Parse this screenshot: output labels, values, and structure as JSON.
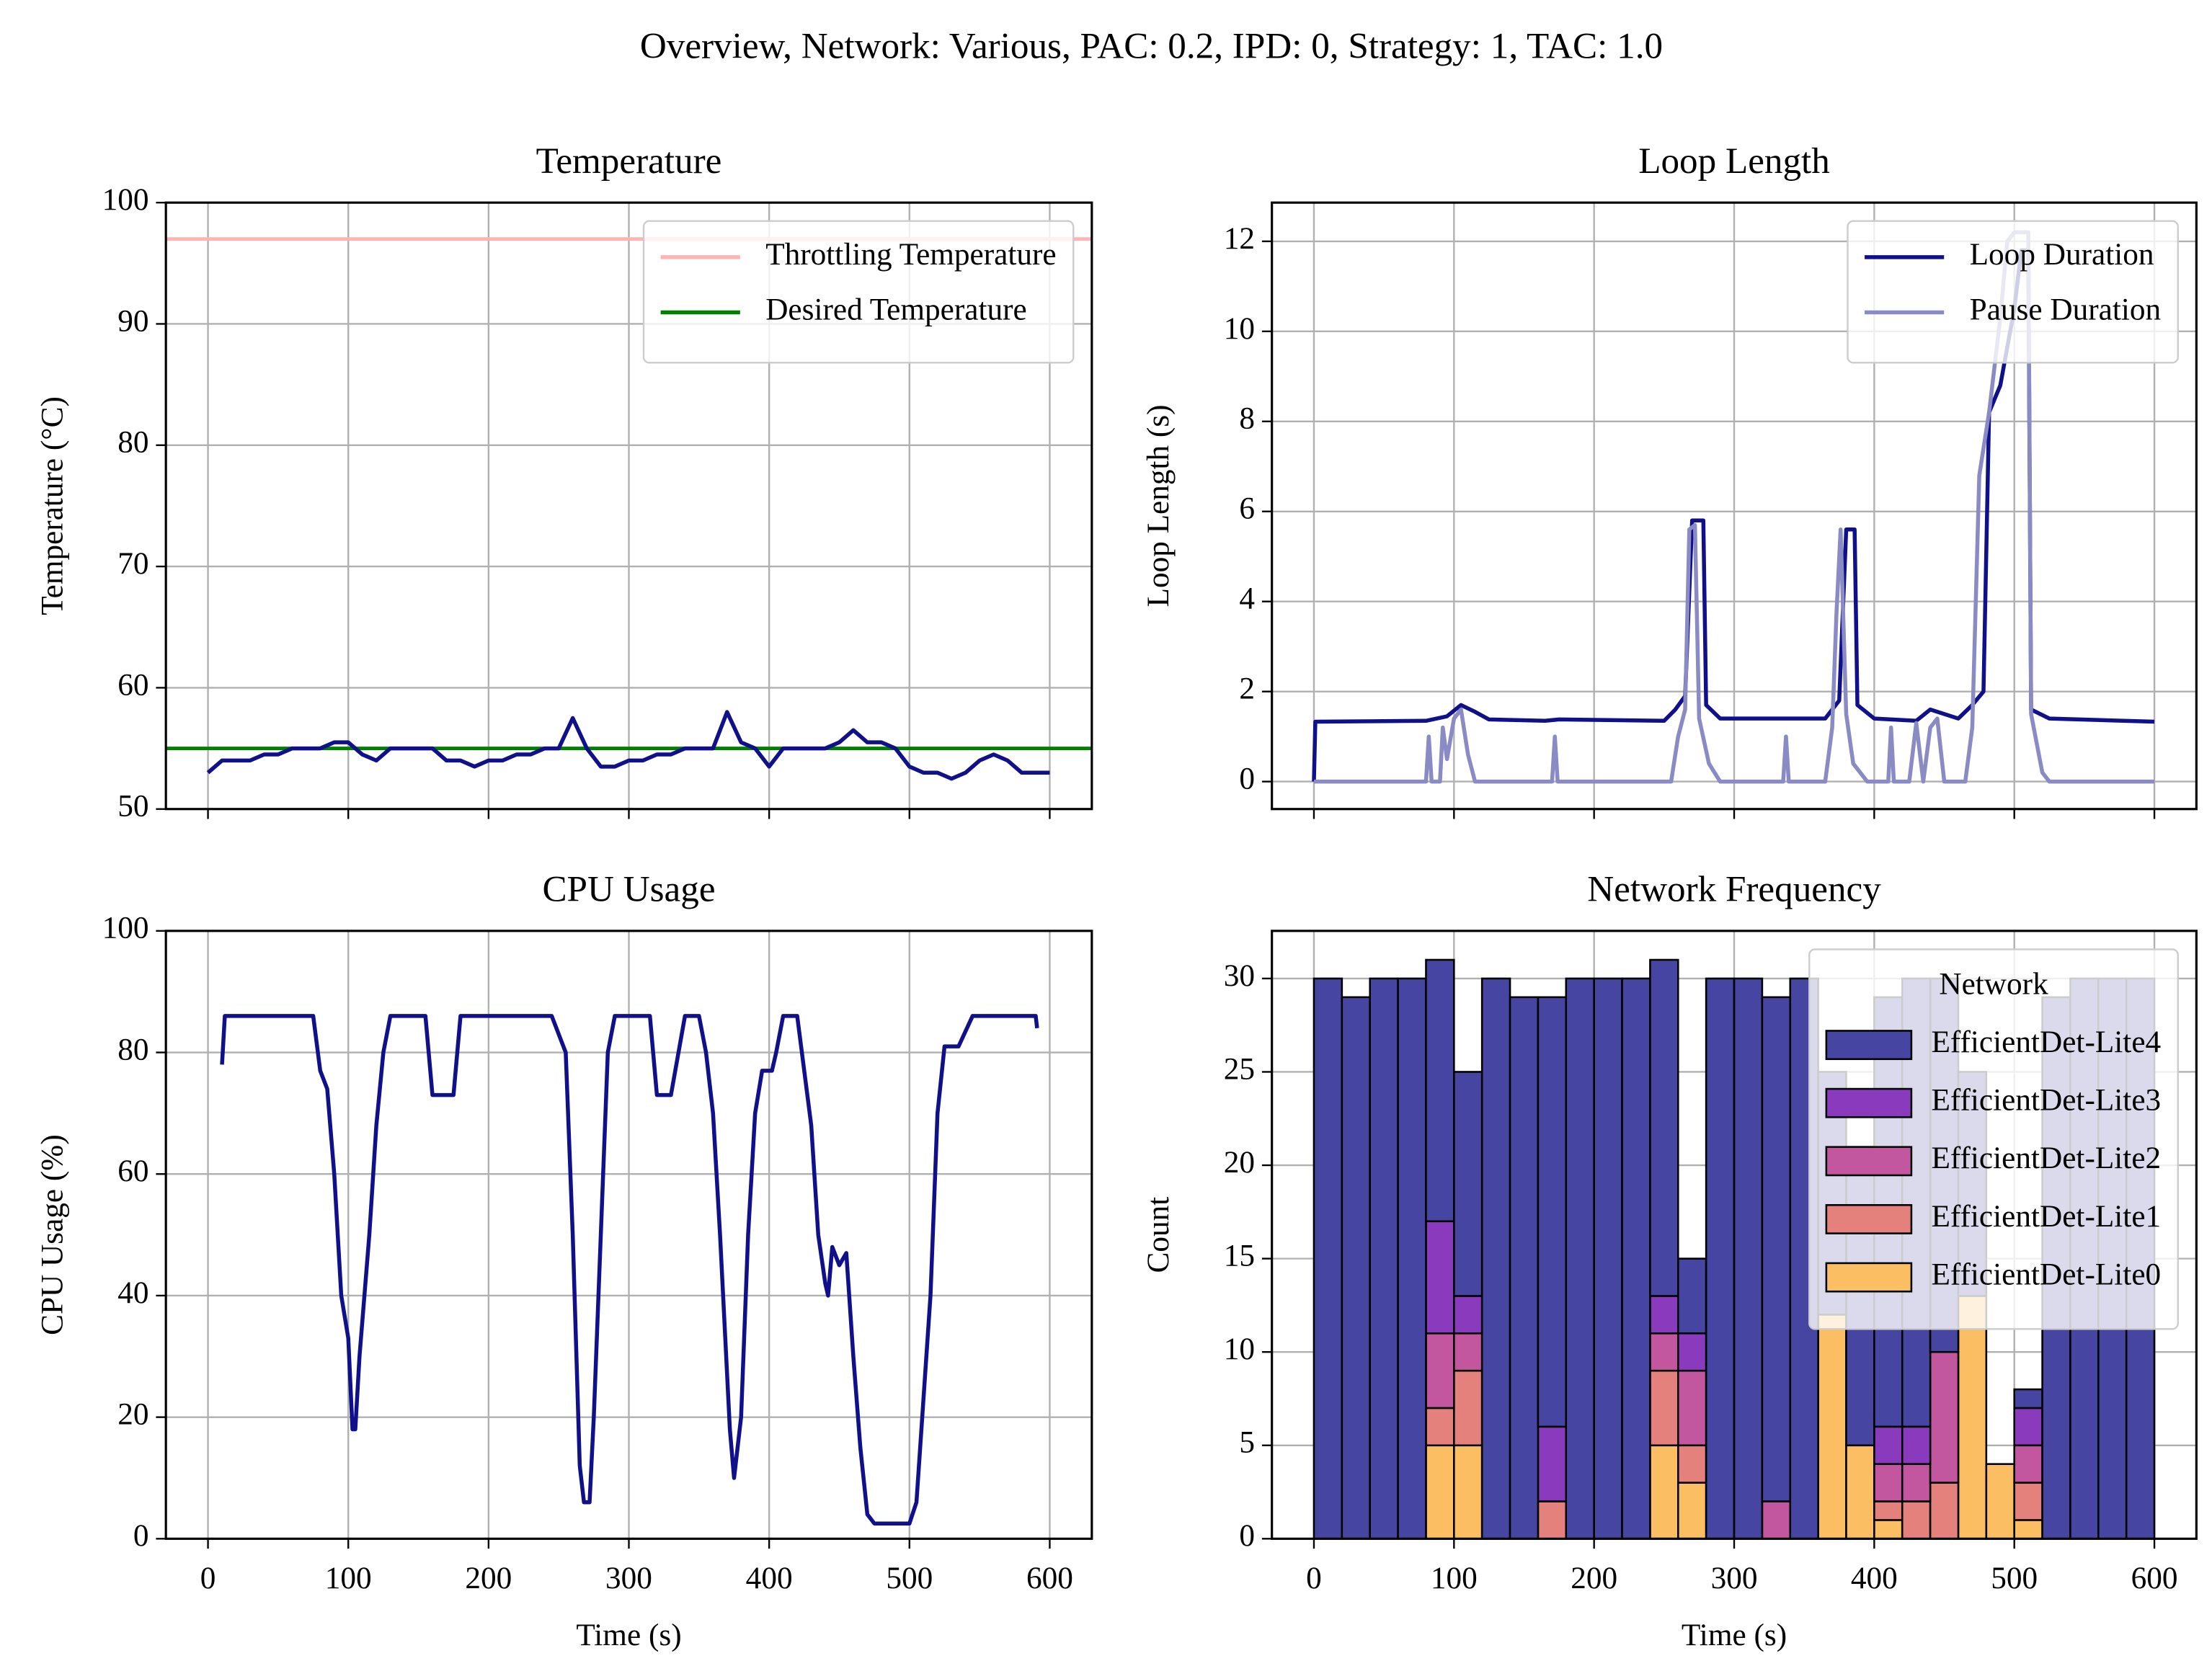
{
  "title": "Overview, Network: Various, PAC: 0.2, IPD: 0, Strategy: 1, TAC: 1.0",
  "chart_data": [
    {
      "type": "line",
      "title": "Temperature",
      "ylabel": "Temperature (°C)",
      "xlim": [
        -30,
        630
      ],
      "ylim": [
        50,
        100
      ],
      "xticks": [
        0,
        100,
        200,
        300,
        400,
        500,
        600
      ],
      "yticks": [
        50,
        60,
        70,
        80,
        90,
        100
      ],
      "xtick_labels": false,
      "grid": true,
      "legend": "upper right",
      "reference_lines": [
        {
          "name": "Throttling Temperature",
          "color": "#ffb3b3",
          "value": 97
        },
        {
          "name": "Desired Temperature",
          "color": "#008000",
          "value": 55
        }
      ],
      "series": [
        {
          "color": "#10108a",
          "x": [
            0,
            10,
            20,
            30,
            40,
            50,
            60,
            70,
            80,
            90,
            100,
            110,
            120,
            130,
            140,
            150,
            160,
            170,
            180,
            190,
            200,
            210,
            220,
            230,
            240,
            250,
            260,
            270,
            280,
            290,
            300,
            310,
            320,
            330,
            340,
            350,
            360,
            370,
            380,
            390,
            400,
            410,
            420,
            430,
            440,
            450,
            460,
            470,
            480,
            490,
            500,
            510,
            520,
            530,
            540,
            550,
            560,
            570,
            580,
            590,
            600
          ],
          "values": [
            53,
            54,
            54,
            54,
            54.5,
            54.5,
            55,
            55,
            55,
            55.5,
            55.5,
            54.5,
            54,
            55,
            55,
            55,
            55,
            54,
            54,
            53.5,
            54,
            54,
            54.5,
            54.5,
            55,
            55,
            57.5,
            55,
            53.5,
            53.5,
            54,
            54,
            54.5,
            54.5,
            55,
            55,
            55,
            58,
            55.5,
            55,
            53.5,
            55,
            55,
            55,
            55,
            55.5,
            56.5,
            55.5,
            55.5,
            55,
            53.5,
            53,
            53,
            52.5,
            53,
            54,
            54.5,
            54,
            53,
            53,
            53
          ]
        }
      ]
    },
    {
      "type": "line",
      "title": "Loop Length",
      "ylabel": "Loop Length (s)",
      "xlim": [
        -30,
        630
      ],
      "ylim": [
        -0.61,
        12.86
      ],
      "xticks": [
        0,
        100,
        200,
        300,
        400,
        500,
        600
      ],
      "yticks": [
        0,
        2,
        4,
        6,
        8,
        10,
        12
      ],
      "xtick_labels": false,
      "grid": true,
      "legend": "upper right",
      "series": [
        {
          "name": "Loop Duration",
          "color": "#10108a",
          "x": [
            0,
            1,
            80,
            95,
            105,
            115,
            125,
            165,
            175,
            250,
            258,
            265,
            270,
            278,
            280,
            290,
            365,
            375,
            380,
            386,
            388,
            400,
            430,
            440,
            450,
            460,
            470,
            478,
            482,
            490,
            500,
            505,
            510,
            512,
            525,
            600
          ],
          "values": [
            0,
            1.33,
            1.35,
            1.45,
            1.7,
            1.55,
            1.38,
            1.35,
            1.38,
            1.35,
            1.6,
            1.9,
            5.8,
            5.8,
            1.7,
            1.4,
            1.4,
            1.8,
            5.6,
            5.6,
            1.7,
            1.4,
            1.35,
            1.6,
            1.5,
            1.4,
            1.7,
            2,
            8.2,
            8.8,
            10.5,
            11.8,
            11.8,
            1.6,
            1.4,
            1.33
          ]
        },
        {
          "name": "Pause Duration",
          "color": "#8a8ac4",
          "x": [
            0,
            80,
            82,
            84,
            90,
            92,
            95,
            100,
            105,
            110,
            115,
            170,
            172,
            174,
            255,
            260,
            265,
            268,
            272,
            275,
            282,
            290,
            335,
            337,
            339,
            365,
            370,
            373,
            376,
            380,
            385,
            395,
            410,
            412,
            414,
            425,
            430,
            435,
            440,
            445,
            450,
            465,
            470,
            475,
            482,
            490,
            495,
            500,
            510,
            512,
            520,
            525,
            600
          ],
          "values": [
            0,
            0,
            1,
            0,
            0,
            1.2,
            0.5,
            1.4,
            1.6,
            0.6,
            0,
            0,
            1,
            0,
            0,
            1,
            1.6,
            5.6,
            5.7,
            1.4,
            0.4,
            0,
            0,
            1,
            0,
            0,
            1.2,
            3.7,
            5.6,
            1.5,
            0.4,
            0,
            0,
            1.2,
            0,
            0,
            1.3,
            0,
            1.2,
            1.4,
            0,
            0,
            1.2,
            6.8,
            8.2,
            10.3,
            12,
            12.2,
            12.2,
            1.5,
            0.2,
            0,
            0
          ]
        }
      ]
    },
    {
      "type": "line",
      "title": "CPU Usage",
      "ylabel": "CPU Usage (%)",
      "xlabel": "Time (s)",
      "xlim": [
        -30,
        630
      ],
      "ylim": [
        0,
        100
      ],
      "xticks": [
        0,
        100,
        200,
        300,
        400,
        500,
        600
      ],
      "yticks": [
        0,
        20,
        40,
        60,
        80,
        100
      ],
      "grid": true,
      "series": [
        {
          "color": "#10108a",
          "x": [
            10,
            12,
            75,
            80,
            85,
            90,
            95,
            100,
            103,
            105,
            108,
            115,
            120,
            125,
            130,
            155,
            160,
            175,
            180,
            245,
            255,
            260,
            265,
            268,
            272,
            275,
            280,
            285,
            290,
            315,
            320,
            330,
            340,
            350,
            355,
            360,
            365,
            372,
            375,
            380,
            385,
            390,
            395,
            402,
            405,
            410,
            420,
            425,
            430,
            435,
            440,
            442,
            445,
            450,
            455,
            460,
            465,
            470,
            475,
            500,
            505,
            515,
            520,
            525,
            535,
            545,
            590,
            591
          ],
          "values": [
            78,
            86,
            86,
            77,
            74,
            60,
            40,
            33,
            18,
            18,
            30,
            50,
            68,
            80,
            86,
            86,
            73,
            73,
            86,
            86,
            80,
            50,
            12,
            6,
            6,
            20,
            50,
            80,
            86,
            86,
            73,
            73,
            86,
            86,
            80,
            70,
            50,
            18,
            10,
            20,
            50,
            70,
            77,
            77,
            80,
            86,
            86,
            77,
            68,
            50,
            42,
            40,
            48,
            45,
            47,
            30,
            15,
            4,
            2.5,
            2.5,
            6,
            40,
            70,
            81,
            81,
            86,
            86,
            84
          ]
        }
      ]
    },
    {
      "type": "histogram",
      "title": "Network Frequency",
      "ylabel": "Count",
      "xlabel": "Time (s)",
      "xlim": [
        -30,
        630
      ],
      "ylim": [
        0,
        32.55
      ],
      "xticks": [
        0,
        100,
        200,
        300,
        400,
        500,
        600
      ],
      "yticks": [
        0,
        5,
        10,
        15,
        20,
        25,
        30
      ],
      "grid": true,
      "legend": "upper right",
      "legend_title": "Network",
      "stacked": true,
      "bins": [
        0,
        20,
        40,
        60,
        80,
        100,
        120,
        140,
        160,
        180,
        200,
        220,
        240,
        260,
        280,
        300,
        320,
        340,
        360,
        380,
        400,
        420,
        440,
        460,
        480,
        500,
        520,
        540,
        560,
        580,
        600
      ],
      "series": [
        {
          "name": "EfficientDet-Lite4",
          "color": "#4646a2",
          "values": [
            30,
            29,
            30,
            30,
            14,
            12,
            30,
            29,
            23,
            30,
            30,
            30,
            18,
            4,
            30,
            30,
            27,
            30,
            13,
            16,
            23,
            24,
            20,
            12,
            0,
            1,
            29,
            30,
            30,
            30
          ]
        },
        {
          "name": "EfficientDet-Lite3",
          "color": "#8a3bbd",
          "values": [
            0,
            0,
            0,
            0,
            6,
            2,
            0,
            0,
            4,
            0,
            0,
            0,
            2,
            2,
            0,
            0,
            0,
            0,
            0,
            0,
            2,
            2,
            0,
            0,
            0,
            2,
            0,
            0,
            0,
            0
          ]
        },
        {
          "name": "EfficientDet-Lite2",
          "color": "#c2579f",
          "values": [
            0,
            0,
            0,
            0,
            4,
            2,
            0,
            0,
            0,
            0,
            0,
            0,
            2,
            4,
            0,
            0,
            2,
            0,
            0,
            0,
            2,
            2,
            7,
            0,
            0,
            2,
            0,
            0,
            0,
            0
          ]
        },
        {
          "name": "EfficientDet-Lite1",
          "color": "#e5817d",
          "values": [
            0,
            0,
            0,
            0,
            2,
            4,
            0,
            0,
            2,
            0,
            0,
            0,
            4,
            2,
            0,
            0,
            0,
            0,
            0,
            0,
            1,
            2,
            3,
            0,
            0,
            2,
            0,
            0,
            0,
            0
          ]
        },
        {
          "name": "EfficientDet-Lite0",
          "color": "#fbbe62",
          "values": [
            0,
            0,
            0,
            0,
            5,
            5,
            0,
            0,
            0,
            0,
            0,
            0,
            5,
            3,
            0,
            0,
            0,
            0,
            12,
            5,
            1,
            0,
            0,
            13,
            4,
            1,
            0,
            0,
            0,
            0
          ]
        }
      ]
    }
  ]
}
